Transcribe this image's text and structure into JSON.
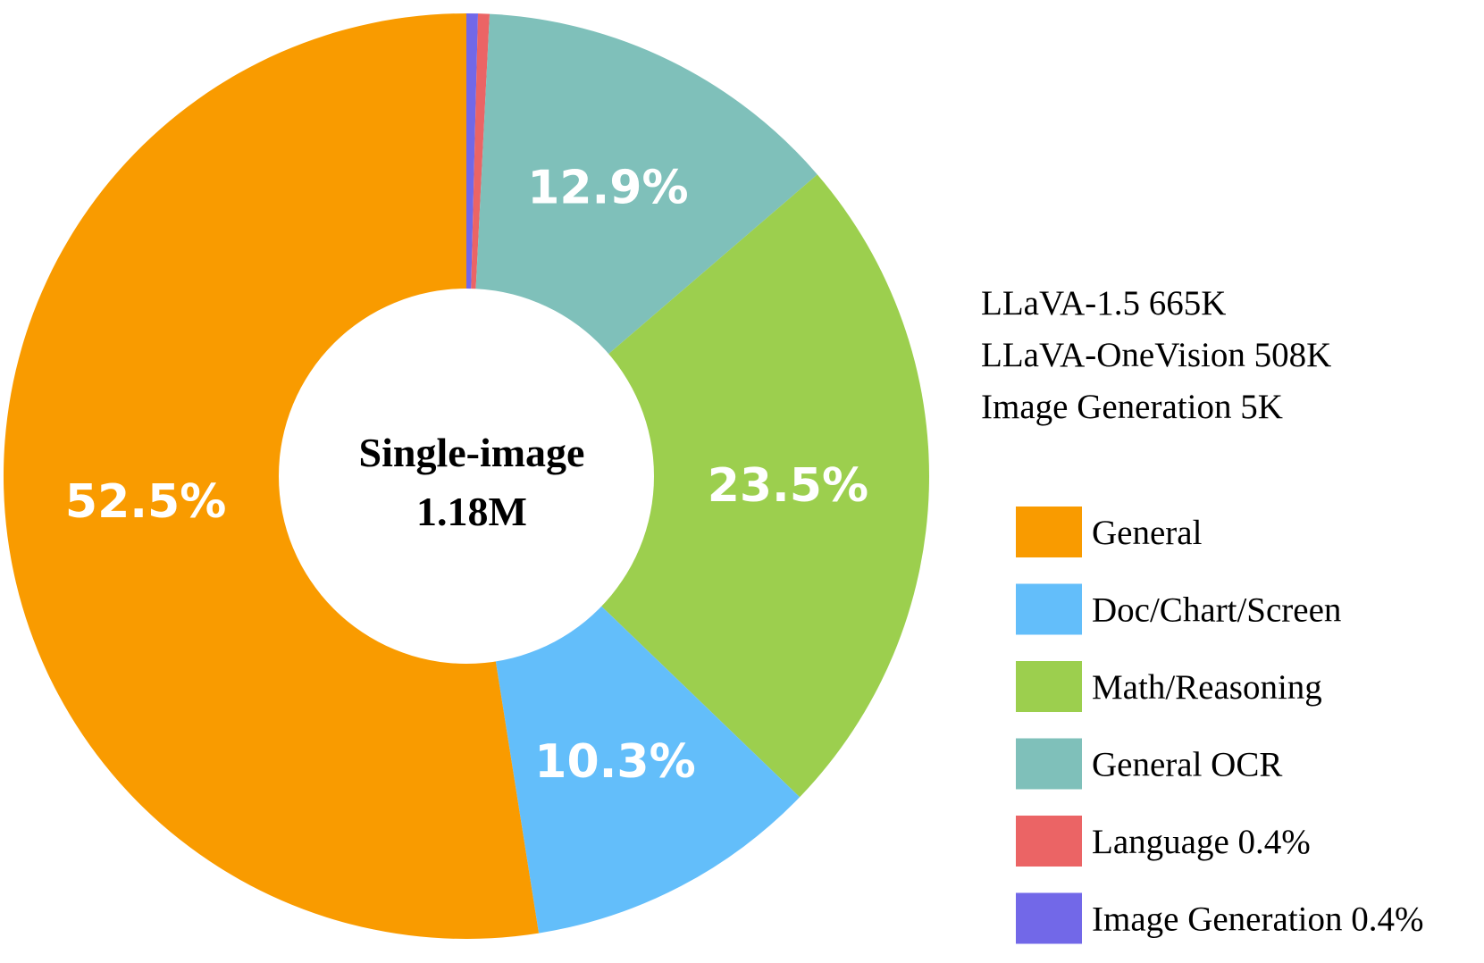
{
  "chart_data": {
    "type": "pie",
    "donut": true,
    "center_label": [
      "Single-image",
      "1.18M"
    ],
    "categories": [
      "General",
      "Doc/Chart/Screen",
      "Math/Reasoning",
      "General OCR",
      "Language 0.4%",
      "Image Generation 0.4%"
    ],
    "values": [
      52.5,
      10.3,
      23.5,
      12.9,
      0.4,
      0.4
    ],
    "slice_labels": [
      "52.5%",
      "10.3%",
      "23.5%",
      "12.9%",
      "",
      ""
    ],
    "colors": [
      "#F99B00",
      "#63BEFA",
      "#9CCF4E",
      "#7FC0BA",
      "#EB6465",
      "#7268E8"
    ],
    "notes": [
      "LLaVA-1.5 665K",
      "LLaVA-OneVision 508K",
      "Image Generation 5K"
    ],
    "legend_position": "right"
  }
}
